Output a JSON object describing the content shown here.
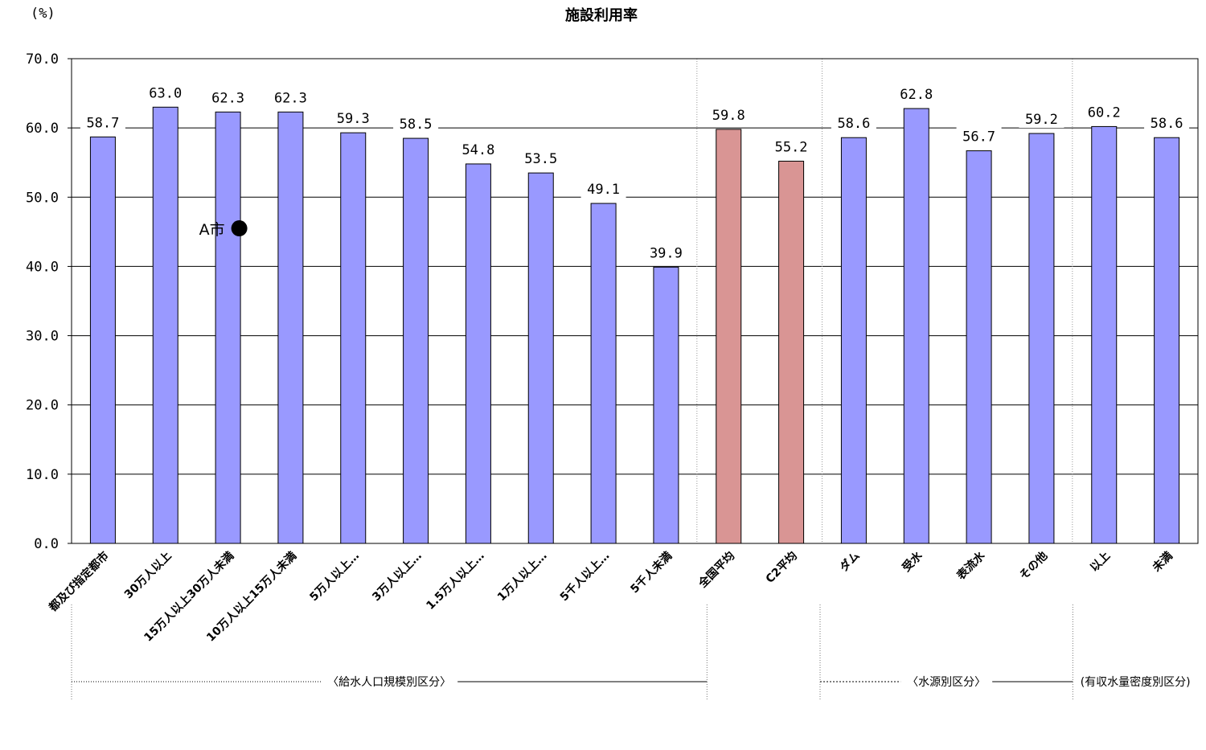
{
  "chart_data": {
    "type": "bar",
    "title": "施設利用率",
    "ylabel": "(%)",
    "ylim": [
      0,
      70
    ],
    "yticks": [
      "0.0",
      "10.0",
      "20.0",
      "30.0",
      "40.0",
      "50.0",
      "60.0",
      "70.0"
    ],
    "grid": true,
    "categories": [
      "都及び指定都市",
      "30万人以上",
      "15万人以上30万人未満",
      "10万人以上15万人未満",
      "5万人以上…",
      "3万人以上…",
      "1.5万人以上…",
      "1万人以上…",
      "5千人以上…",
      "5千人未満",
      "全国平均",
      "C2平均",
      "ダム",
      "受水",
      "表流水",
      "その他",
      "以上",
      "未満"
    ],
    "values": [
      58.7,
      63.0,
      62.3,
      62.3,
      59.3,
      58.5,
      54.8,
      53.5,
      49.1,
      39.9,
      59.8,
      55.2,
      58.6,
      62.8,
      56.7,
      59.2,
      60.2,
      58.6
    ],
    "value_labels": [
      "58.7",
      "63.0",
      "62.3",
      "62.3",
      "59.3",
      "58.5",
      "54.8",
      "53.5",
      "49.1",
      "39.9",
      "59.8",
      "55.2",
      "58.6",
      "62.8",
      "56.7",
      "59.2",
      "60.2",
      "58.6"
    ],
    "bar_colors": [
      "#9999ff",
      "#9999ff",
      "#9999ff",
      "#9999ff",
      "#9999ff",
      "#9999ff",
      "#9999ff",
      "#9999ff",
      "#9999ff",
      "#9999ff",
      "#d99594",
      "#d99594",
      "#9999ff",
      "#9999ff",
      "#9999ff",
      "#9999ff",
      "#9999ff",
      "#9999ff"
    ],
    "groups": [
      {
        "label": "〈給水人口規模別区分〉",
        "from": 0,
        "to": 9
      },
      {
        "label": "〈水源別区分〉",
        "from": 12,
        "to": 15
      },
      {
        "label": "(有収水量密度別区分)",
        "from": 16,
        "to": 17
      }
    ],
    "annotation": {
      "label": "A市",
      "category_index": 2,
      "value": 45.5
    }
  }
}
